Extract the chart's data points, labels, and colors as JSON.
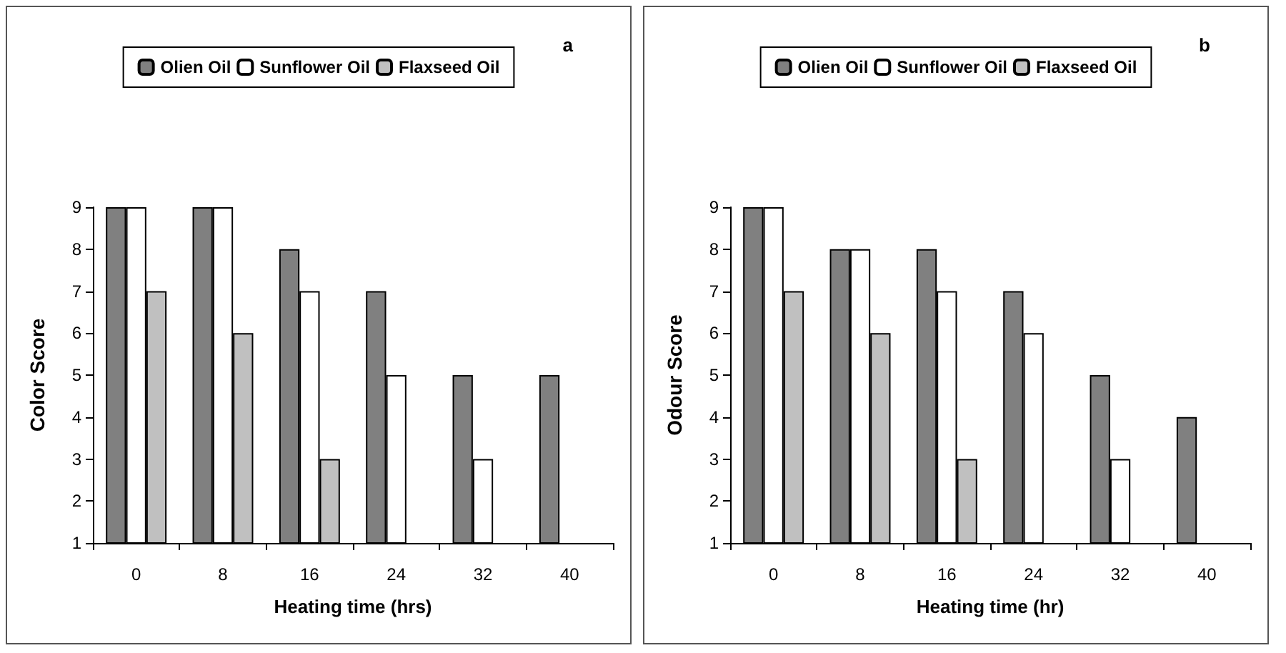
{
  "chart_data": [
    {
      "type": "bar",
      "xlabel": "Heating time (hrs)",
      "ylabel": "Color Score",
      "annotations": [
        "a"
      ],
      "categories": [
        "0",
        "8",
        "16",
        "24",
        "32",
        "40"
      ],
      "series": [
        {
          "name": "Olien Oil",
          "color": "#808080",
          "values": [
            9,
            9,
            8,
            7,
            5,
            5
          ]
        },
        {
          "name": "Sunflower Oil",
          "color": "#ffffff",
          "values": [
            9,
            9,
            7,
            5,
            3,
            null
          ]
        },
        {
          "name": "Flaxseed Oil",
          "color": "#c0c0c0",
          "values": [
            7,
            6,
            3,
            null,
            null,
            null
          ]
        }
      ],
      "ylim": [
        1,
        9
      ],
      "yticks": [
        1,
        2,
        3,
        4,
        5,
        6,
        7,
        8,
        9
      ],
      "legend": "top"
    },
    {
      "type": "bar",
      "xlabel": "Heating time (hr)",
      "ylabel": "Odour Score",
      "annotations": [
        "b"
      ],
      "categories": [
        "0",
        "8",
        "16",
        "24",
        "32",
        "40"
      ],
      "series": [
        {
          "name": "Olien Oil",
          "color": "#808080",
          "values": [
            9,
            8,
            8,
            7,
            5,
            4
          ]
        },
        {
          "name": "Sunflower Oil",
          "color": "#ffffff",
          "values": [
            9,
            8,
            7,
            6,
            3,
            null
          ]
        },
        {
          "name": "Flaxseed Oil",
          "color": "#c0c0c0",
          "values": [
            7,
            6,
            3,
            null,
            null,
            null
          ]
        }
      ],
      "ylim": [
        1,
        9
      ],
      "yticks": [
        1,
        2,
        3,
        4,
        5,
        6,
        7,
        8,
        9
      ],
      "legend": "top"
    }
  ]
}
